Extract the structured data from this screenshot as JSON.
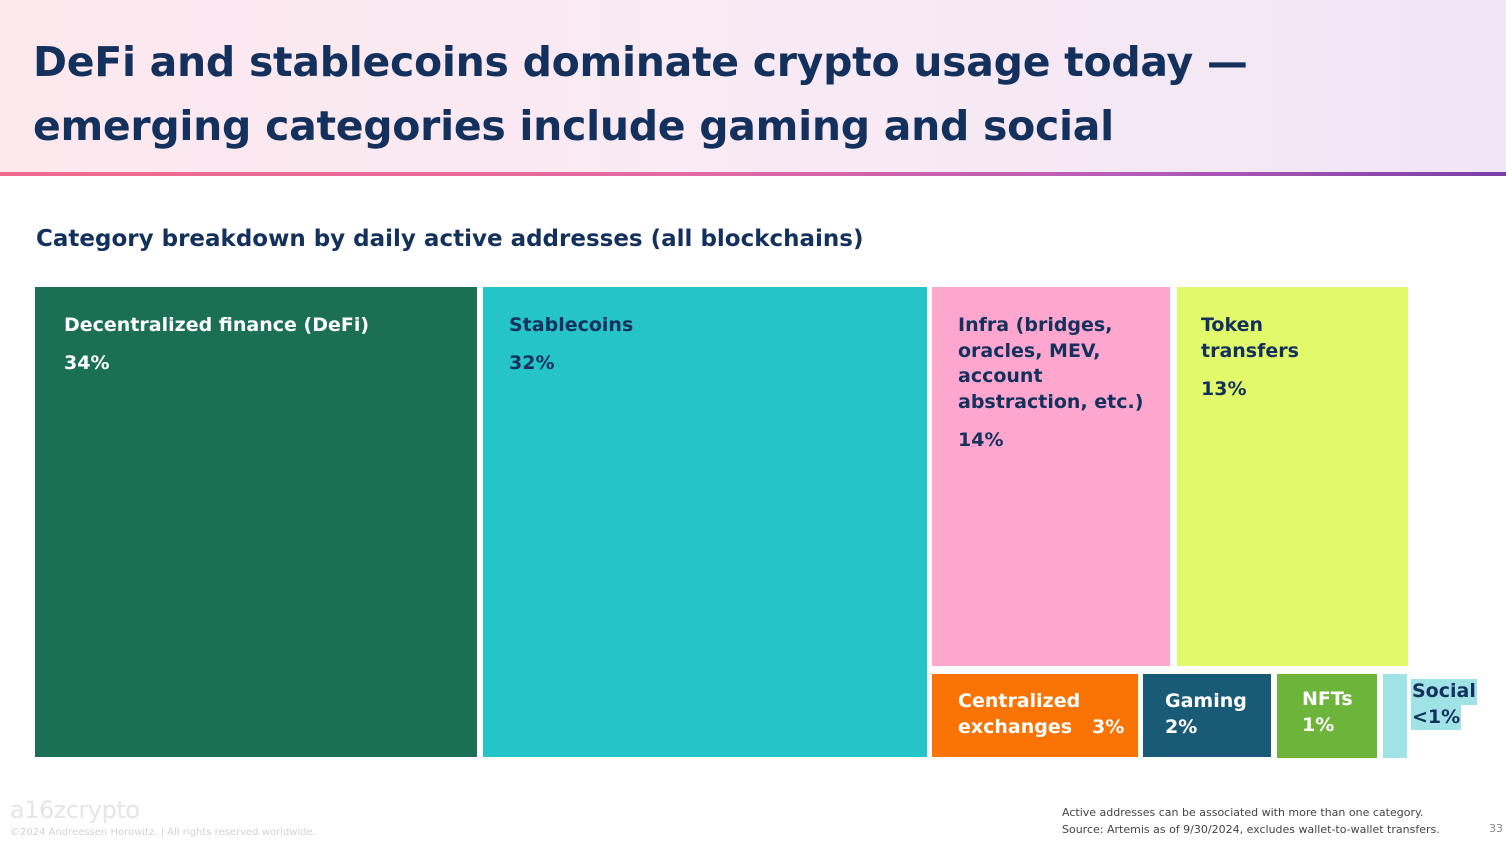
{
  "header": {
    "title": "DeFi and stablecoins dominate crypto usage today — emerging categories include gaming and social"
  },
  "chart_data": {
    "type": "treemap",
    "title": "Category breakdown by daily active addresses (all blockchains)",
    "categories": [
      {
        "name": "Decentralized finance (DeFi)",
        "label": "34%",
        "value": 34,
        "color": "#1b6f52",
        "text_color": "#ffffff"
      },
      {
        "name": "Stablecoins",
        "label": "32%",
        "value": 32,
        "color": "#24c4c8",
        "text_color": "#13315c"
      },
      {
        "name": "Infra (bridges, oracles, MEV, account abstraction, etc.)",
        "label": "14%",
        "value": 14,
        "color": "#fda6ce",
        "text_color": "#13315c"
      },
      {
        "name": "Token transfers",
        "label": "13%",
        "value": 13,
        "color": "#e2f96b",
        "text_color": "#13315c"
      },
      {
        "name": "Centralized exchanges",
        "label": "3%",
        "value": 3,
        "color": "#f97305",
        "text_color": "#ffffff"
      },
      {
        "name": "Gaming",
        "label": "2%",
        "value": 2,
        "color": "#195a77",
        "text_color": "#ffffff"
      },
      {
        "name": "NFTs",
        "label": "1%",
        "value": 1,
        "color": "#6cb43a",
        "text_color": "#ffffff"
      },
      {
        "name": "Social",
        "label": "<1%",
        "value": 0.5,
        "color": "#9fe3e6",
        "text_color": "#13315c"
      }
    ]
  },
  "footer": {
    "logo": "a16zcrypto",
    "copyright": "©2024 Andreessen Horowitz.  |  All rights reserved worldwide.",
    "note1": "Active addresses can be associated with more than one category.",
    "note2": "Source: Artemis as of 9/30/2024, excludes wallet-to-wallet transfers.",
    "page_number": "33"
  }
}
